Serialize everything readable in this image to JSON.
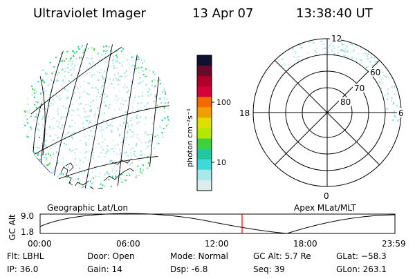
{
  "header": {
    "title": "Ultraviolet Imager",
    "date": "13 Apr 07",
    "time": "13:38:40 UT"
  },
  "colorbar": {
    "unit_label": "photon cm⁻²s⁻¹",
    "ticks": [
      "100",
      "10"
    ],
    "colors": [
      "#101030",
      "#6a0a2a",
      "#b0002a",
      "#d8003a",
      "#f06a00",
      "#f0a000",
      "#e0e000",
      "#b0e800",
      "#40d040",
      "#20c8a0",
      "#40d8d8",
      "#a8e8e8",
      "#dcecec"
    ]
  },
  "polar_plot": {
    "mlt_labels": {
      "top": "12",
      "left": "18",
      "right": "6",
      "bottom": "0"
    },
    "lat_labels": [
      "60",
      "70",
      "80"
    ]
  },
  "map": {
    "label": "Geographic Lat/Lon"
  },
  "orbit_panel": {
    "axis_label": "GC Alt",
    "y_ticks": [
      "9.0",
      "1.8"
    ],
    "x_ticks": [
      "00:00",
      "06:00",
      "12:00",
      "18:00",
      "23:59"
    ],
    "right_label": "Apex MLat/MLT",
    "marker_color": "#e00000"
  },
  "info": {
    "filter": "Flt: LBHL",
    "ip": "IP: 36.0",
    "door": "Door: Open",
    "gain": "Gain: 14",
    "mode": "Mode: Normal",
    "dsp": "Dsp:    -6.8",
    "gc_alt": "GC Alt: 5.7 Re",
    "seq": "Seq: 39",
    "glat": "GLat: −58.3",
    "glon": "GLon: 263.1"
  }
}
